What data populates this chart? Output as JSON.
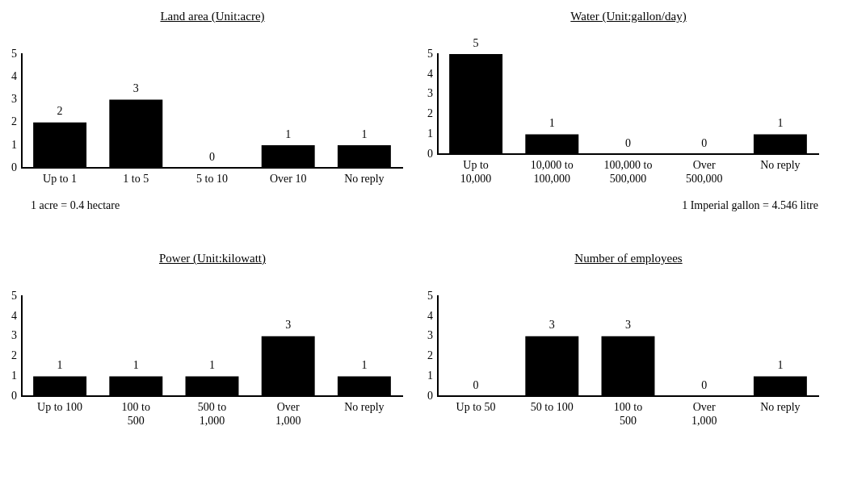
{
  "chart_data": [
    {
      "type": "bar",
      "title": "Land area (Unit:acre)",
      "categories": [
        "Up to 1",
        "1 to 5",
        "5 to 10",
        "Over 10",
        "No reply"
      ],
      "values": [
        2,
        3,
        0,
        1,
        1
      ],
      "color": "#000000",
      "ylim": [
        0,
        5
      ],
      "yticks": [
        0,
        1,
        2,
        3,
        4,
        5
      ],
      "grid": false,
      "legend": false,
      "data_labels": true,
      "annotations": [
        "1 acre = 0.4 hectare"
      ]
    },
    {
      "type": "bar",
      "title": "Water (Unit:gallon/day)",
      "categories": [
        "Up to 10,000",
        "10,000 to 100,000",
        "100,000 to 500,000",
        "Over 500,000",
        "No reply"
      ],
      "values": [
        5,
        1,
        0,
        0,
        1
      ],
      "color": "#000000",
      "ylim": [
        0,
        5
      ],
      "yticks": [
        0,
        1,
        2,
        3,
        4,
        5
      ],
      "grid": false,
      "legend": false,
      "data_labels": true,
      "annotations": [
        "1 Imperial gallon = 4.546 litre"
      ]
    },
    {
      "type": "bar",
      "title": "Power (Unit:kilowatt)",
      "categories": [
        "Up to 100",
        "100 to 500",
        "500 to 1,000",
        "Over 1,000",
        "No reply"
      ],
      "values": [
        1,
        1,
        1,
        3,
        1
      ],
      "color": "#000000",
      "ylim": [
        0,
        5
      ],
      "yticks": [
        0,
        1,
        2,
        3,
        4,
        5
      ],
      "grid": false,
      "legend": false,
      "data_labels": true
    },
    {
      "type": "bar",
      "title": "Number of employees",
      "categories": [
        "Up to 50",
        "50 to 100",
        "100 to 500",
        "Over 1,000",
        "No reply"
      ],
      "values": [
        0,
        3,
        3,
        0,
        1
      ],
      "color": "#000000",
      "ylim": [
        0,
        5
      ],
      "yticks": [
        0,
        1,
        2,
        3,
        4,
        5
      ],
      "grid": false,
      "legend": false,
      "data_labels": true
    }
  ]
}
